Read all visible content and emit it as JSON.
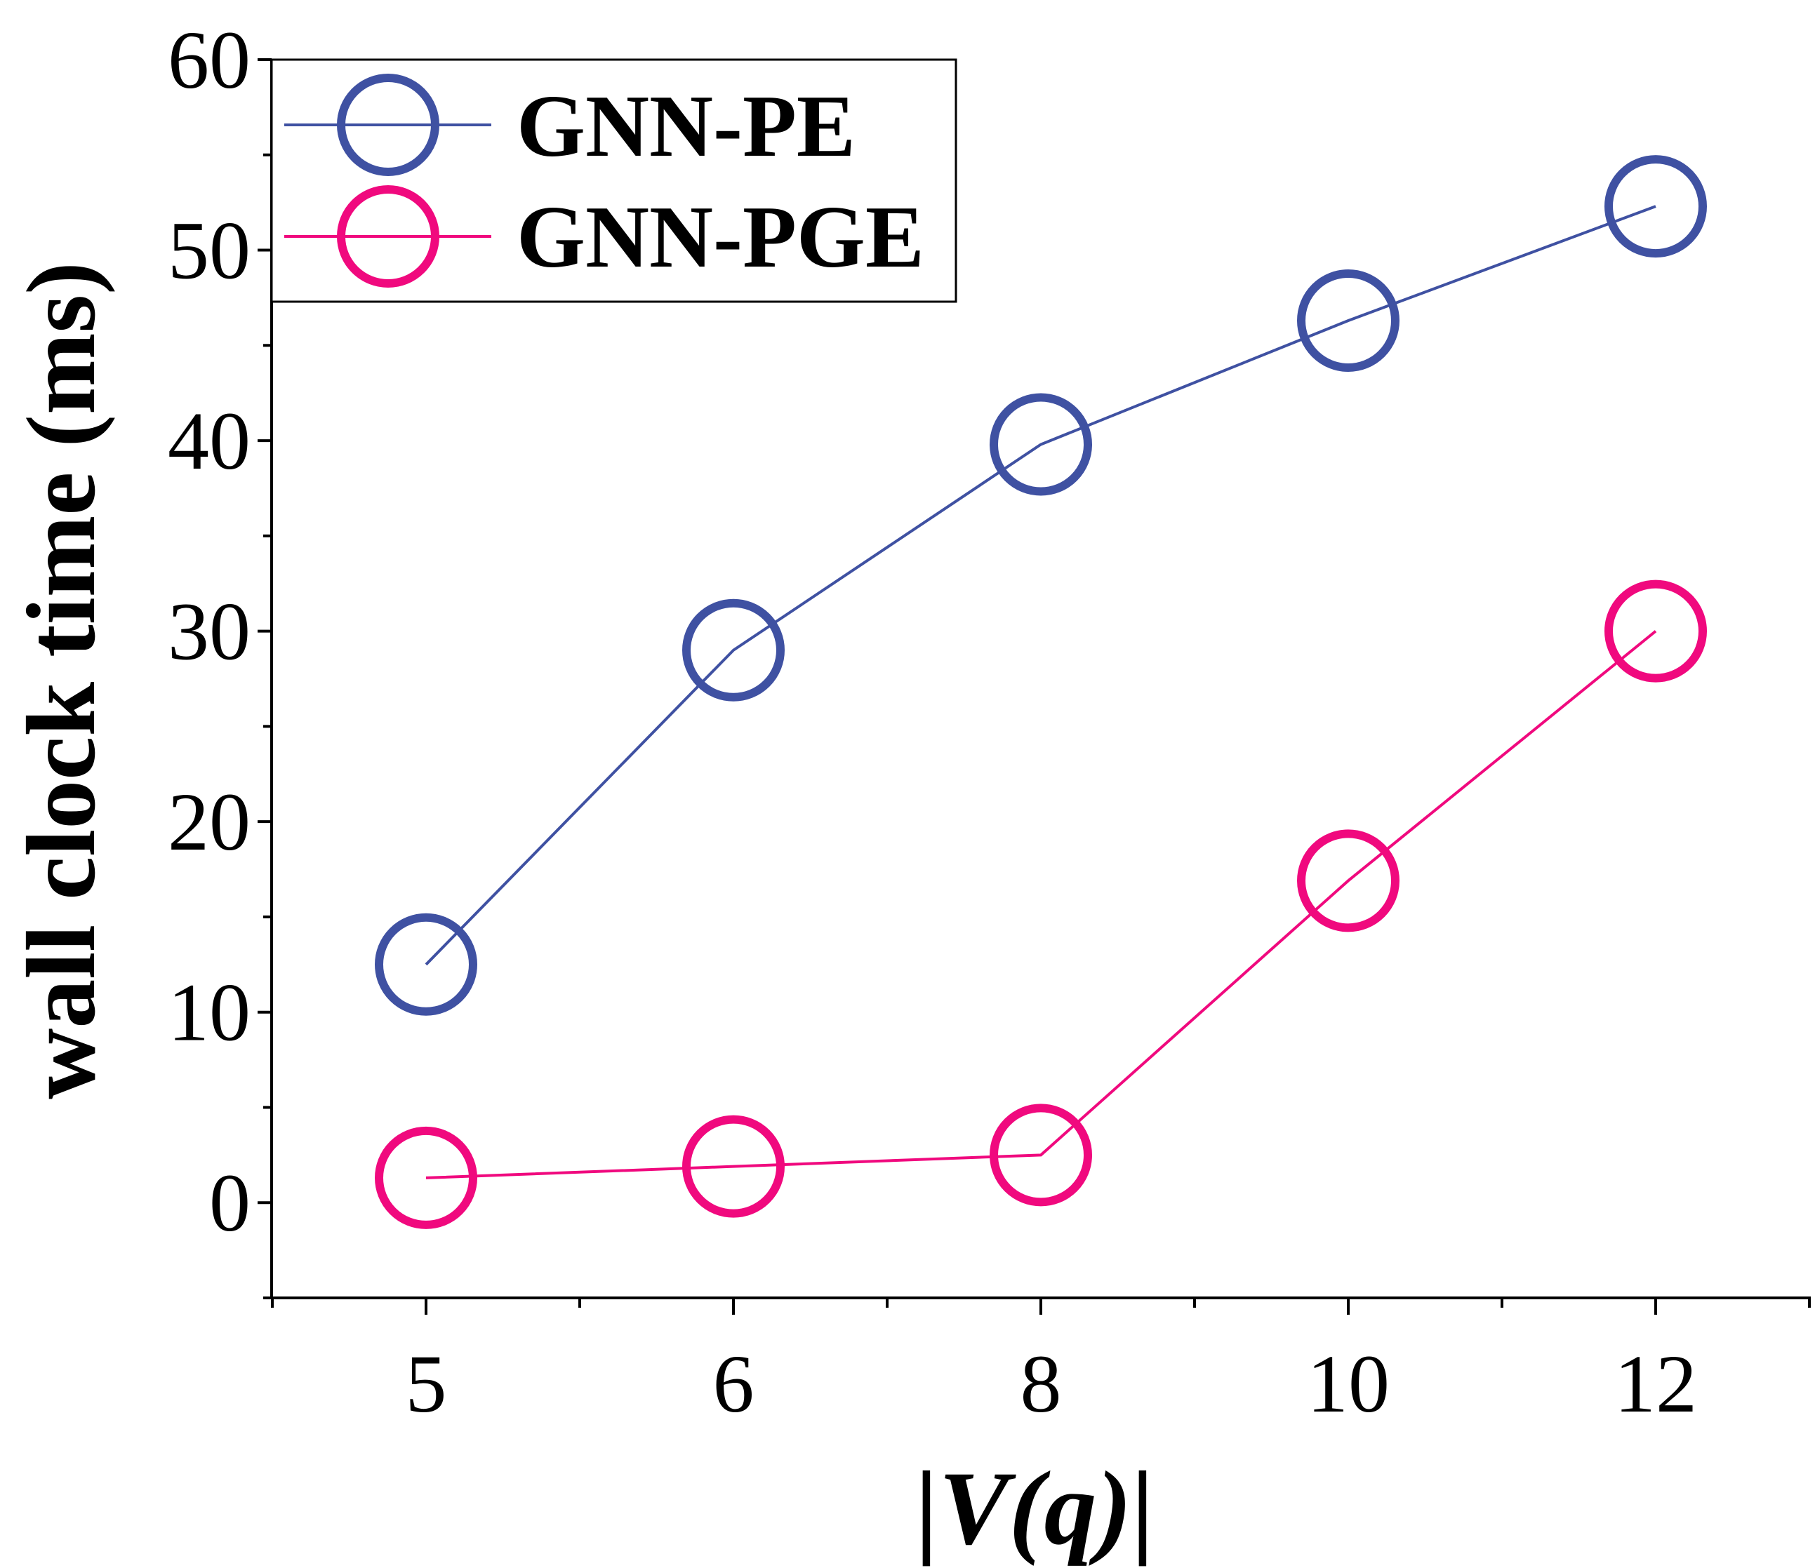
{
  "chart_data": {
    "type": "line",
    "xlabel": "|V(q)|",
    "ylabel": "wall clock time (ms)",
    "categories": [
      "5",
      "6",
      "8",
      "10",
      "12"
    ],
    "y_ticks": [
      "0",
      "10",
      "20",
      "30",
      "40",
      "50",
      "60"
    ],
    "ylim": [
      -5,
      60
    ],
    "grid": false,
    "legend_position": "top-left",
    "series": [
      {
        "name": "GNN-PE",
        "color": "#3F51A2",
        "marker": "open-circle",
        "values": [
          12.5,
          29.0,
          39.8,
          46.3,
          52.3
        ]
      },
      {
        "name": "GNN-PGE",
        "color": "#F0097E",
        "marker": "open-circle",
        "values": [
          1.3,
          1.9,
          2.5,
          16.9,
          30.0
        ]
      }
    ]
  }
}
